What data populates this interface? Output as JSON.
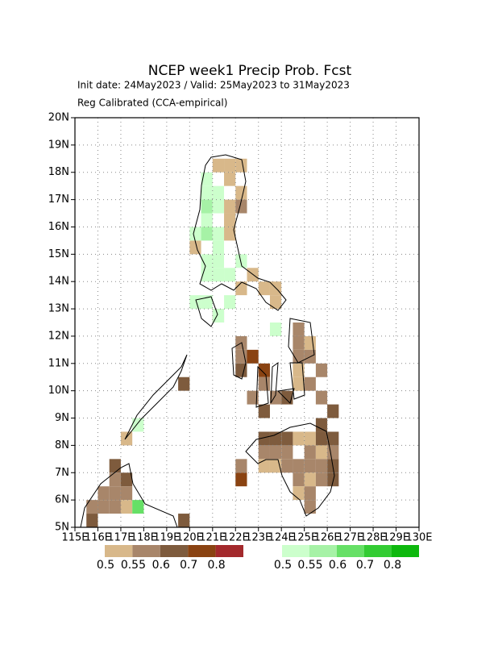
{
  "title": "NCEP week1 Precip Prob. Fcst",
  "subtitle": "Init date: 24May2023 / Valid: 25May2023 to 31May2023",
  "subtitle2": "Reg Calibrated (CCA-empirical)",
  "map": {
    "xlim": [
      115,
      130
    ],
    "ylim": [
      5,
      20
    ],
    "cell": 0.5,
    "xticks": [
      {
        "value": 115,
        "label": "115E"
      },
      {
        "value": 116,
        "label": "116E"
      },
      {
        "value": 117,
        "label": "117E"
      },
      {
        "value": 118,
        "label": "118E"
      },
      {
        "value": 119,
        "label": "119E"
      },
      {
        "value": 120,
        "label": "120E"
      },
      {
        "value": 121,
        "label": "121E"
      },
      {
        "value": 122,
        "label": "122E"
      },
      {
        "value": 123,
        "label": "123E"
      },
      {
        "value": 124,
        "label": "124E"
      },
      {
        "value": 125,
        "label": "125E"
      },
      {
        "value": 126,
        "label": "126E"
      },
      {
        "value": 127,
        "label": "127E"
      },
      {
        "value": 128,
        "label": "128E"
      },
      {
        "value": 129,
        "label": "129E"
      },
      {
        "value": 130,
        "label": "130E"
      }
    ],
    "yticks": [
      {
        "value": 5,
        "label": "5N"
      },
      {
        "value": 6,
        "label": "6N"
      },
      {
        "value": 7,
        "label": "7N"
      },
      {
        "value": 8,
        "label": "8N"
      },
      {
        "value": 9,
        "label": "9N"
      },
      {
        "value": 10,
        "label": "10N"
      },
      {
        "value": 11,
        "label": "11N"
      },
      {
        "value": 12,
        "label": "12N"
      },
      {
        "value": 13,
        "label": "13N"
      },
      {
        "value": 14,
        "label": "14N"
      },
      {
        "value": 15,
        "label": "15N"
      },
      {
        "value": 16,
        "label": "16N"
      },
      {
        "value": 17,
        "label": "17N"
      },
      {
        "value": 18,
        "label": "18N"
      },
      {
        "value": 19,
        "label": "19N"
      },
      {
        "value": 20,
        "label": "20N"
      }
    ],
    "above_normal": [
      [
        120.5,
        17.5,
        0.5
      ],
      [
        120.5,
        17,
        0.5
      ],
      [
        120.5,
        16.5,
        0.55
      ],
      [
        121,
        17,
        0.5
      ],
      [
        121,
        16.5,
        0.5
      ],
      [
        120.5,
        16,
        0.5
      ],
      [
        120.5,
        15.5,
        0.55
      ],
      [
        121,
        15.5,
        0.5
      ],
      [
        120,
        15.5,
        0.5
      ],
      [
        121,
        15,
        0.5
      ],
      [
        121,
        14.5,
        0.5
      ],
      [
        120.5,
        14.5,
        0.5
      ],
      [
        121.5,
        14,
        0.5
      ],
      [
        120.5,
        14,
        0.5
      ],
      [
        121,
        14,
        0.5
      ],
      [
        120,
        13,
        0.5
      ],
      [
        120.5,
        13,
        0.5
      ],
      [
        121,
        12.5,
        0.5
      ],
      [
        121.5,
        13,
        0.5
      ],
      [
        123.5,
        12,
        0.5
      ],
      [
        122,
        14.5,
        0.5
      ],
      [
        117.5,
        8.5,
        0.5
      ],
      [
        117.5,
        5.5,
        0.6
      ]
    ],
    "below_normal": [
      [
        121,
        18,
        0.5
      ],
      [
        121.5,
        18,
        0.5
      ],
      [
        122,
        18,
        0.5
      ],
      [
        121.5,
        17.5,
        0.5
      ],
      [
        122,
        17,
        0.5
      ],
      [
        121.5,
        16.5,
        0.5
      ],
      [
        122,
        16.5,
        0.55
      ],
      [
        121.5,
        16,
        0.5
      ],
      [
        121.5,
        15.5,
        0.5
      ],
      [
        120,
        15,
        0.5
      ],
      [
        122.5,
        14,
        0.5
      ],
      [
        122,
        13.5,
        0.5
      ],
      [
        123,
        13.5,
        0.5
      ],
      [
        123.5,
        13.5,
        0.5
      ],
      [
        123.5,
        13,
        0.5
      ],
      [
        121,
        12.5,
        0.6
      ],
      [
        122,
        11.5,
        0.55
      ],
      [
        122,
        11,
        0.55
      ],
      [
        122,
        10.5,
        0.6
      ],
      [
        122.5,
        11,
        0.7
      ],
      [
        123,
        10.5,
        0.7
      ],
      [
        123,
        10,
        0.55
      ],
      [
        124.5,
        12,
        0.55
      ],
      [
        124.5,
        11.5,
        0.55
      ],
      [
        125,
        11.5,
        0.5
      ],
      [
        125,
        11,
        0.55
      ],
      [
        124.5,
        11,
        0.55
      ],
      [
        124.5,
        10.5,
        0.5
      ],
      [
        125.5,
        10.5,
        0.55
      ],
      [
        124.5,
        10,
        0.5
      ],
      [
        125,
        10,
        0.55
      ],
      [
        125.5,
        9.5,
        0.55
      ],
      [
        122.5,
        9.5,
        0.55
      ],
      [
        123,
        9,
        0.6
      ],
      [
        123.5,
        9.5,
        0.55
      ],
      [
        124,
        9.5,
        0.6
      ],
      [
        119.5,
        10,
        0.6
      ],
      [
        117,
        8,
        0.5
      ],
      [
        123,
        8,
        0.6
      ],
      [
        123.5,
        8,
        0.6
      ],
      [
        124,
        8,
        0.6
      ],
      [
        124.5,
        8,
        0.5
      ],
      [
        125,
        8,
        0.5
      ],
      [
        125.5,
        8,
        0.6
      ],
      [
        126,
        8,
        0.6
      ],
      [
        125.5,
        8.5,
        0.6
      ],
      [
        126,
        9,
        0.6
      ],
      [
        123,
        7.5,
        0.55
      ],
      [
        123.5,
        7.5,
        0.55
      ],
      [
        124,
        7.5,
        0.55
      ],
      [
        125,
        7.5,
        0.55
      ],
      [
        125.5,
        7.5,
        0.5
      ],
      [
        126,
        7.5,
        0.55
      ],
      [
        122,
        7,
        0.55
      ],
      [
        122,
        6.5,
        0.7
      ],
      [
        123,
        7,
        0.5
      ],
      [
        123.5,
        7,
        0.5
      ],
      [
        124,
        7,
        0.55
      ],
      [
        124.5,
        7,
        0.55
      ],
      [
        125,
        7,
        0.55
      ],
      [
        125.5,
        7,
        0.55
      ],
      [
        126,
        7,
        0.6
      ],
      [
        124.5,
        6.5,
        0.55
      ],
      [
        125,
        6.5,
        0.5
      ],
      [
        125.5,
        6.5,
        0.55
      ],
      [
        126,
        6.5,
        0.6
      ],
      [
        124.5,
        6,
        0.5
      ],
      [
        125,
        6,
        0.55
      ],
      [
        125,
        5.5,
        0.55
      ],
      [
        116.5,
        7,
        0.6
      ],
      [
        116.5,
        6.5,
        0.55
      ],
      [
        117,
        6.5,
        0.6
      ],
      [
        116,
        6,
        0.55
      ],
      [
        116.5,
        6,
        0.55
      ],
      [
        117,
        6,
        0.55
      ],
      [
        115.5,
        5.5,
        0.55
      ],
      [
        116,
        5.5,
        0.55
      ],
      [
        116.5,
        5.5,
        0.55
      ],
      [
        117,
        5.5,
        0.5
      ],
      [
        115.5,
        5,
        0.6
      ],
      [
        119.5,
        5,
        0.6
      ]
    ]
  },
  "colorbars": {
    "below": {
      "levels": [
        0.5,
        0.55,
        0.6,
        0.7,
        0.8
      ],
      "colors": [
        "#d8b88a",
        "#a8866a",
        "#7e5b3d",
        "#8a4312",
        "#a3292c"
      ]
    },
    "above": {
      "levels": [
        0.5,
        0.55,
        0.6,
        0.7,
        0.8
      ],
      "colors": [
        "#ccffcc",
        "#a6f2a6",
        "#66e066",
        "#33cc33",
        "#0db80d"
      ]
    }
  }
}
